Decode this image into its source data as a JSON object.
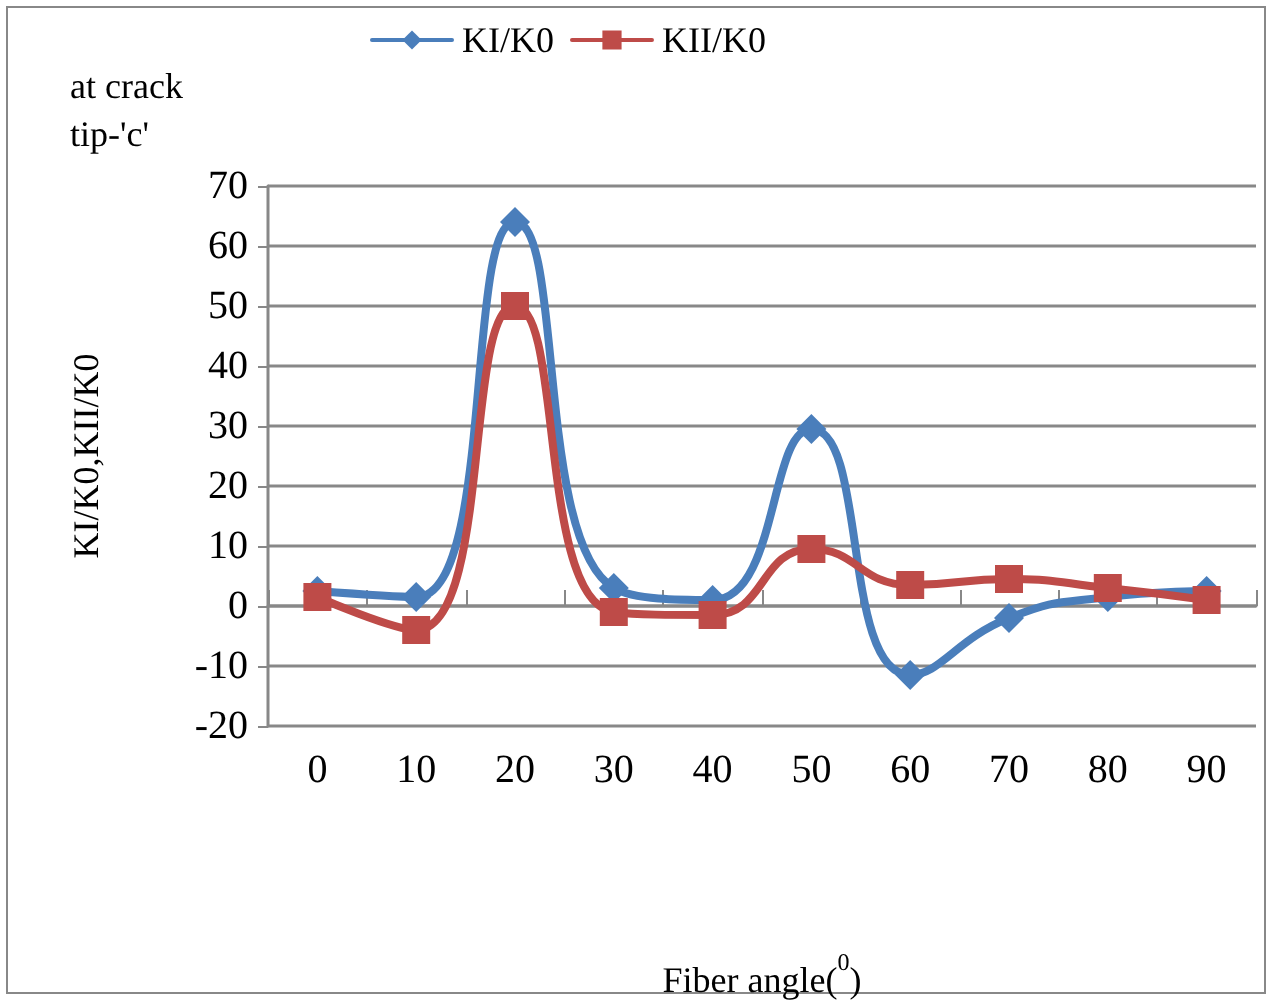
{
  "chart_data": {
    "type": "line",
    "title": "at crack tip-'c'",
    "xlabel": "Fiber angle($^{0}$)",
    "ylabel": "KI/K0,KII/K0",
    "categories": [
      "0",
      "10",
      "20",
      "30",
      "40",
      "50",
      "60",
      "70",
      "80",
      "90"
    ],
    "series": [
      {
        "name": "KI/K0",
        "color": "#4a7ebb",
        "marker": "diamond",
        "values": [
          2.5,
          1.5,
          64,
          3,
          1,
          29.5,
          -11.5,
          -2,
          1.5,
          2.5
        ]
      },
      {
        "name": "KII/K0",
        "color": "#be4b48",
        "marker": "square",
        "values": [
          1.5,
          -4,
          50,
          -1,
          -1.5,
          9.5,
          3.5,
          4.5,
          3,
          1
        ]
      }
    ],
    "ylim": [
      -20,
      70
    ],
    "yticks": [
      -20,
      -10,
      0,
      10,
      20,
      30,
      40,
      50,
      60,
      70
    ],
    "grid": "y",
    "legend": "top",
    "line_style": "solid"
  }
}
